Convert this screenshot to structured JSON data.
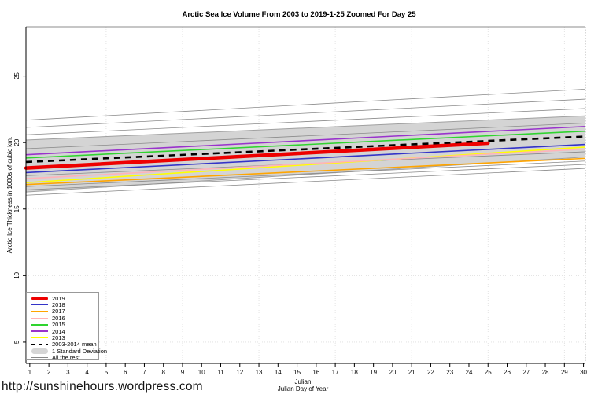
{
  "title": "Arctic Sea Ice Volume From 2003 to 2019-1-25 Zoomed For Day 25",
  "watermark": "http://sunshinehours.wordpress.com",
  "axes": {
    "y_label": "Arctic Ice Thickness in 1000s of cubic km.",
    "x_label_line1": "Julian",
    "x_label_line2": "Julian Day of Year",
    "x_ticks": [
      1,
      2,
      3,
      4,
      5,
      6,
      7,
      8,
      9,
      10,
      11,
      12,
      13,
      14,
      15,
      16,
      17,
      18,
      19,
      20,
      21,
      22,
      23,
      24,
      25,
      26,
      27,
      28,
      29,
      30
    ],
    "y_ticks": [
      5,
      10,
      15,
      20,
      25
    ],
    "x_domain": [
      0.8,
      30.1
    ],
    "y_domain": [
      3.4,
      28.7
    ],
    "x_gridlines": [
      5,
      9,
      13,
      17,
      21,
      25,
      29
    ],
    "y_gridlines": [
      5,
      10,
      15,
      20,
      25
    ]
  },
  "chart_data": {
    "type": "line",
    "title": "Arctic Sea Ice Volume From 2003 to 2019-1-25 Zoomed For Day 25",
    "xlabel": "Julian Day of Year",
    "ylabel": "Arctic Ice Thickness in 1000s of cubic km.",
    "x_range": [
      1,
      30
    ],
    "ylim_ticks": [
      5,
      10,
      15,
      20,
      25
    ],
    "grid": "faint-dotted",
    "legend_position": "bottom-left",
    "band": {
      "label": "1 Standard Deviation",
      "x": [
        1,
        30
      ],
      "top": [
        20.2,
        22.0
      ],
      "bottom": [
        16.3,
        18.9
      ],
      "fill": "#d4d4d4",
      "edge": "#a0a0a0"
    },
    "series": [
      {
        "name": "rest-line-1",
        "label": "All the rest",
        "color": "#8a8a8a",
        "width": 0.8,
        "points": [
          [
            1,
            21.7
          ],
          [
            30,
            24.0
          ]
        ]
      },
      {
        "name": "rest-line-2",
        "label": "All the rest",
        "color": "#8a8a8a",
        "width": 0.8,
        "points": [
          [
            1,
            21.15
          ],
          [
            30,
            23.25
          ]
        ]
      },
      {
        "name": "rest-line-3",
        "label": "All the rest",
        "color": "#8a8a8a",
        "width": 0.8,
        "points": [
          [
            1,
            20.6
          ],
          [
            30,
            22.55
          ]
        ]
      },
      {
        "name": "rest-line-4",
        "label": "All the rest",
        "color": "#8a8a8a",
        "width": 0.8,
        "points": [
          [
            1,
            19.55
          ],
          [
            30,
            21.45
          ]
        ]
      },
      {
        "name": "rest-line-5",
        "label": "All the rest",
        "color": "#8a8a8a",
        "width": 0.8,
        "points": [
          [
            1,
            17.52
          ],
          [
            30,
            19.3
          ]
        ]
      },
      {
        "name": "rest-line-6",
        "label": "All the rest",
        "color": "#8a8a8a",
        "width": 0.8,
        "points": [
          [
            1,
            16.7
          ],
          [
            30,
            18.6
          ]
        ]
      },
      {
        "name": "rest-line-7",
        "label": "All the rest",
        "color": "#8a8a8a",
        "width": 0.8,
        "points": [
          [
            1,
            16.45
          ],
          [
            30,
            18.35
          ]
        ]
      },
      {
        "name": "rest-line-8",
        "label": "All the rest",
        "color": "#8a8a8a",
        "width": 0.8,
        "points": [
          [
            1,
            16.05
          ],
          [
            30,
            18.05
          ]
        ]
      },
      {
        "name": "2017",
        "label": "2017",
        "color": "#ffa500",
        "width": 1.6,
        "points": [
          [
            1,
            16.85
          ],
          [
            30,
            18.8
          ]
        ]
      },
      {
        "name": "2013",
        "label": "2013",
        "color": "#ffff00",
        "width": 1.6,
        "points": [
          [
            1,
            17.0
          ],
          [
            30,
            19.65
          ]
        ]
      },
      {
        "name": "2016",
        "label": "2016",
        "color": "#ffb3ba",
        "width": 1.6,
        "points": [
          [
            1,
            17.3
          ],
          [
            30,
            19.5
          ]
        ]
      },
      {
        "name": "2018",
        "label": "2018",
        "color": "#3434c8",
        "width": 1.6,
        "points": [
          [
            1,
            17.75
          ],
          [
            30,
            19.85
          ]
        ]
      },
      {
        "name": "2014",
        "label": "2014",
        "color": "#9933cc",
        "width": 1.6,
        "points": [
          [
            1,
            19.1
          ],
          [
            30,
            21.2
          ]
        ]
      },
      {
        "name": "2015",
        "label": "2015",
        "color": "#2fd42f",
        "width": 1.6,
        "points": [
          [
            1,
            18.85
          ],
          [
            30,
            20.85
          ]
        ]
      },
      {
        "name": "2019",
        "label": "2019",
        "color": "#ee0000",
        "width": 4.5,
        "ends_at": 25,
        "points": [
          [
            1,
            18.1
          ],
          [
            25,
            19.95
          ]
        ]
      },
      {
        "name": "2003-2014-mean",
        "label": "2003-2014 mean",
        "color": "#000000",
        "width": 2.6,
        "dash": "8,6",
        "points": [
          [
            1,
            18.55
          ],
          [
            30,
            20.45
          ]
        ]
      }
    ]
  },
  "legend": {
    "items": [
      {
        "label": "2019",
        "color": "#ee0000",
        "kind": "thick"
      },
      {
        "label": "2018",
        "color": "#3434c8",
        "kind": "line"
      },
      {
        "label": "2017",
        "color": "#ffa500",
        "kind": "line"
      },
      {
        "label": "2016",
        "color": "#ffb3ba",
        "kind": "line"
      },
      {
        "label": "2015",
        "color": "#2fd42f",
        "kind": "line"
      },
      {
        "label": "2014",
        "color": "#9933cc",
        "kind": "line"
      },
      {
        "label": "2013",
        "color": "#ffff00",
        "kind": "line"
      },
      {
        "label": "2003-2014 mean",
        "color": "#000000",
        "kind": "dash"
      },
      {
        "label": "1 Standard Deviation",
        "color": "#d6d6d6",
        "kind": "band"
      },
      {
        "label": "All the rest",
        "color": "#8a8a8a",
        "kind": "line"
      }
    ]
  }
}
